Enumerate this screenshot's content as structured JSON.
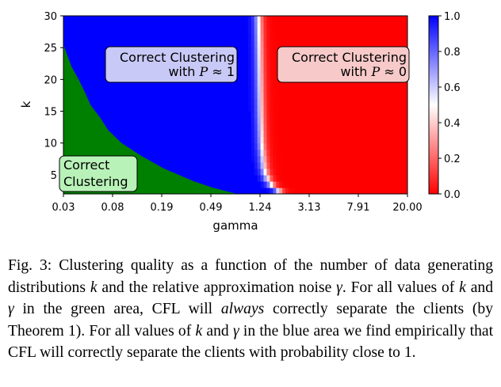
{
  "chart_data": {
    "type": "heatmap",
    "title": "",
    "xlabel": "gamma",
    "ylabel": "k",
    "x_scale": "log",
    "xlim": [
      0.03,
      20.0
    ],
    "ylim": [
      2,
      30
    ],
    "xticks": [
      "0.03",
      "0.08",
      "0.19",
      "0.49",
      "1.24",
      "3.13",
      "7.91",
      "20.00"
    ],
    "yticks": [
      "5",
      "10",
      "15",
      "20",
      "25",
      "30"
    ],
    "colorbar": {
      "colormap": "bwr_r",
      "min": 0.0,
      "max": 1.0,
      "ticks": [
        "0.0",
        "0.2",
        "0.4",
        "0.6",
        "0.8",
        "1.0"
      ]
    },
    "transition_gamma_by_k": {
      "k": [
        2,
        3,
        4,
        5,
        6,
        8,
        10,
        12,
        14,
        17,
        20,
        24,
        27,
        30
      ],
      "gamma": [
        1.9,
        1.6,
        1.45,
        1.38,
        1.33,
        1.3,
        1.27,
        1.26,
        1.25,
        1.24,
        1.23,
        1.22,
        1.21,
        1.2
      ]
    },
    "guaranteed_region_boundary": {
      "k": [
        2,
        3,
        4,
        6,
        8,
        10,
        12,
        14,
        16,
        18,
        20,
        22,
        24,
        25.5
      ],
      "gamma": [
        0.8,
        0.5,
        0.35,
        0.2,
        0.13,
        0.09,
        0.07,
        0.06,
        0.05,
        0.045,
        0.04,
        0.035,
        0.032,
        0.03
      ]
    },
    "regions": [
      {
        "label_lines": [
          "Correct",
          "Clustering"
        ],
        "value": "guaranteed",
        "color": "#008000"
      },
      {
        "label_lines": [
          "Correct Clustering",
          "with P ≈ 1"
        ],
        "value": 1.0,
        "color": "#0000ff"
      },
      {
        "label_lines": [
          "Correct Clustering",
          "with P ≈ 0"
        ],
        "value": 0.0,
        "color": "#ff0000"
      }
    ]
  },
  "caption": {
    "prefix": "Fig. 3:",
    "segments": [
      {
        "t": " Clustering quality as a function of the number of data generating distributions "
      },
      {
        "t": "k",
        "m": true
      },
      {
        "t": " and the relative approximation noise "
      },
      {
        "t": "γ",
        "m": true
      },
      {
        "t": ". For all values of "
      },
      {
        "t": "k",
        "m": true
      },
      {
        "t": " and "
      },
      {
        "t": "γ",
        "m": true
      },
      {
        "t": " in the green area, CFL will "
      },
      {
        "t": "always",
        "m": true
      },
      {
        "t": " correctly separate the clients (by Theorem 1). For all values of "
      },
      {
        "t": "k",
        "m": true
      },
      {
        "t": " and "
      },
      {
        "t": "γ",
        "m": true
      },
      {
        "t": " in the blue area we find empirically that CFL will correctly separate the clients with probability close to 1."
      }
    ]
  }
}
